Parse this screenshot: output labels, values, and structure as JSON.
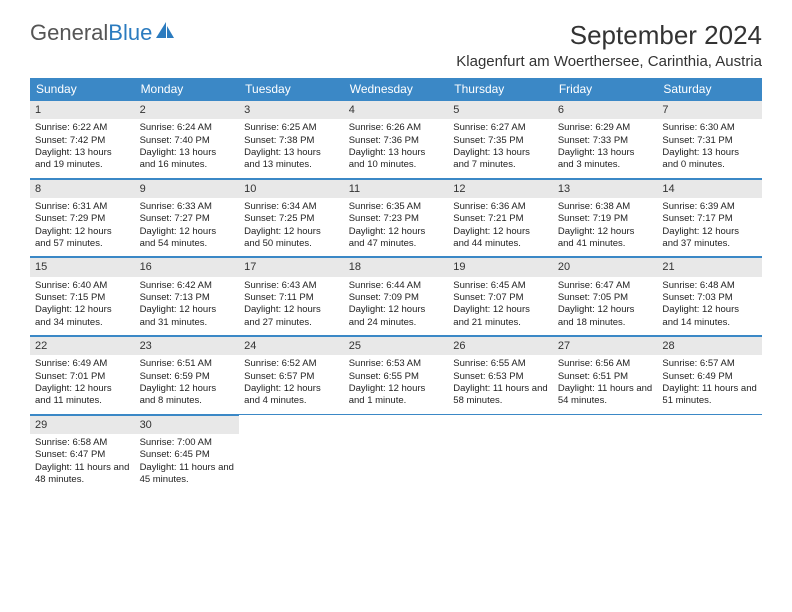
{
  "logo": {
    "text1": "General",
    "text2": "Blue"
  },
  "title": "September 2024",
  "location": "Klagenfurt am Woerthersee, Carinthia, Austria",
  "dayNames": [
    "Sunday",
    "Monday",
    "Tuesday",
    "Wednesday",
    "Thursday",
    "Friday",
    "Saturday"
  ],
  "colors": {
    "headerBg": "#3b88c6",
    "headerText": "#ffffff",
    "dayNumBg": "#e8e8e8",
    "border": "#3b88c6",
    "text": "#222222",
    "logoGray": "#555555",
    "logoBlue": "#2b7bbf",
    "pageBg": "#ffffff"
  },
  "weeks": [
    [
      {
        "n": "1",
        "sunrise": "Sunrise: 6:22 AM",
        "sunset": "Sunset: 7:42 PM",
        "daylight": "Daylight: 13 hours and 19 minutes."
      },
      {
        "n": "2",
        "sunrise": "Sunrise: 6:24 AM",
        "sunset": "Sunset: 7:40 PM",
        "daylight": "Daylight: 13 hours and 16 minutes."
      },
      {
        "n": "3",
        "sunrise": "Sunrise: 6:25 AM",
        "sunset": "Sunset: 7:38 PM",
        "daylight": "Daylight: 13 hours and 13 minutes."
      },
      {
        "n": "4",
        "sunrise": "Sunrise: 6:26 AM",
        "sunset": "Sunset: 7:36 PM",
        "daylight": "Daylight: 13 hours and 10 minutes."
      },
      {
        "n": "5",
        "sunrise": "Sunrise: 6:27 AM",
        "sunset": "Sunset: 7:35 PM",
        "daylight": "Daylight: 13 hours and 7 minutes."
      },
      {
        "n": "6",
        "sunrise": "Sunrise: 6:29 AM",
        "sunset": "Sunset: 7:33 PM",
        "daylight": "Daylight: 13 hours and 3 minutes."
      },
      {
        "n": "7",
        "sunrise": "Sunrise: 6:30 AM",
        "sunset": "Sunset: 7:31 PM",
        "daylight": "Daylight: 13 hours and 0 minutes."
      }
    ],
    [
      {
        "n": "8",
        "sunrise": "Sunrise: 6:31 AM",
        "sunset": "Sunset: 7:29 PM",
        "daylight": "Daylight: 12 hours and 57 minutes."
      },
      {
        "n": "9",
        "sunrise": "Sunrise: 6:33 AM",
        "sunset": "Sunset: 7:27 PM",
        "daylight": "Daylight: 12 hours and 54 minutes."
      },
      {
        "n": "10",
        "sunrise": "Sunrise: 6:34 AM",
        "sunset": "Sunset: 7:25 PM",
        "daylight": "Daylight: 12 hours and 50 minutes."
      },
      {
        "n": "11",
        "sunrise": "Sunrise: 6:35 AM",
        "sunset": "Sunset: 7:23 PM",
        "daylight": "Daylight: 12 hours and 47 minutes."
      },
      {
        "n": "12",
        "sunrise": "Sunrise: 6:36 AM",
        "sunset": "Sunset: 7:21 PM",
        "daylight": "Daylight: 12 hours and 44 minutes."
      },
      {
        "n": "13",
        "sunrise": "Sunrise: 6:38 AM",
        "sunset": "Sunset: 7:19 PM",
        "daylight": "Daylight: 12 hours and 41 minutes."
      },
      {
        "n": "14",
        "sunrise": "Sunrise: 6:39 AM",
        "sunset": "Sunset: 7:17 PM",
        "daylight": "Daylight: 12 hours and 37 minutes."
      }
    ],
    [
      {
        "n": "15",
        "sunrise": "Sunrise: 6:40 AM",
        "sunset": "Sunset: 7:15 PM",
        "daylight": "Daylight: 12 hours and 34 minutes."
      },
      {
        "n": "16",
        "sunrise": "Sunrise: 6:42 AM",
        "sunset": "Sunset: 7:13 PM",
        "daylight": "Daylight: 12 hours and 31 minutes."
      },
      {
        "n": "17",
        "sunrise": "Sunrise: 6:43 AM",
        "sunset": "Sunset: 7:11 PM",
        "daylight": "Daylight: 12 hours and 27 minutes."
      },
      {
        "n": "18",
        "sunrise": "Sunrise: 6:44 AM",
        "sunset": "Sunset: 7:09 PM",
        "daylight": "Daylight: 12 hours and 24 minutes."
      },
      {
        "n": "19",
        "sunrise": "Sunrise: 6:45 AM",
        "sunset": "Sunset: 7:07 PM",
        "daylight": "Daylight: 12 hours and 21 minutes."
      },
      {
        "n": "20",
        "sunrise": "Sunrise: 6:47 AM",
        "sunset": "Sunset: 7:05 PM",
        "daylight": "Daylight: 12 hours and 18 minutes."
      },
      {
        "n": "21",
        "sunrise": "Sunrise: 6:48 AM",
        "sunset": "Sunset: 7:03 PM",
        "daylight": "Daylight: 12 hours and 14 minutes."
      }
    ],
    [
      {
        "n": "22",
        "sunrise": "Sunrise: 6:49 AM",
        "sunset": "Sunset: 7:01 PM",
        "daylight": "Daylight: 12 hours and 11 minutes."
      },
      {
        "n": "23",
        "sunrise": "Sunrise: 6:51 AM",
        "sunset": "Sunset: 6:59 PM",
        "daylight": "Daylight: 12 hours and 8 minutes."
      },
      {
        "n": "24",
        "sunrise": "Sunrise: 6:52 AM",
        "sunset": "Sunset: 6:57 PM",
        "daylight": "Daylight: 12 hours and 4 minutes."
      },
      {
        "n": "25",
        "sunrise": "Sunrise: 6:53 AM",
        "sunset": "Sunset: 6:55 PM",
        "daylight": "Daylight: 12 hours and 1 minute."
      },
      {
        "n": "26",
        "sunrise": "Sunrise: 6:55 AM",
        "sunset": "Sunset: 6:53 PM",
        "daylight": "Daylight: 11 hours and 58 minutes."
      },
      {
        "n": "27",
        "sunrise": "Sunrise: 6:56 AM",
        "sunset": "Sunset: 6:51 PM",
        "daylight": "Daylight: 11 hours and 54 minutes."
      },
      {
        "n": "28",
        "sunrise": "Sunrise: 6:57 AM",
        "sunset": "Sunset: 6:49 PM",
        "daylight": "Daylight: 11 hours and 51 minutes."
      }
    ],
    [
      {
        "n": "29",
        "sunrise": "Sunrise: 6:58 AM",
        "sunset": "Sunset: 6:47 PM",
        "daylight": "Daylight: 11 hours and 48 minutes."
      },
      {
        "n": "30",
        "sunrise": "Sunrise: 7:00 AM",
        "sunset": "Sunset: 6:45 PM",
        "daylight": "Daylight: 11 hours and 45 minutes."
      },
      null,
      null,
      null,
      null,
      null
    ]
  ]
}
